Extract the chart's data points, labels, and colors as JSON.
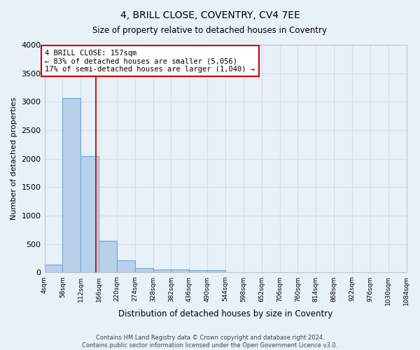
{
  "title": "4, BRILL CLOSE, COVENTRY, CV4 7EE",
  "subtitle": "Size of property relative to detached houses in Coventry",
  "xlabel": "Distribution of detached houses by size in Coventry",
  "ylabel": "Number of detached properties",
  "bar_edges": [
    4,
    58,
    112,
    166,
    220,
    274,
    328,
    382,
    436,
    490,
    544,
    598,
    652,
    706,
    760,
    814,
    868,
    922,
    976,
    1030,
    1084
  ],
  "bar_heights": [
    140,
    3060,
    2050,
    560,
    220,
    75,
    55,
    50,
    45,
    45,
    0,
    0,
    0,
    0,
    0,
    0,
    0,
    0,
    0,
    0
  ],
  "bar_color": "#b8d0ea",
  "bar_edge_color": "#6aaad4",
  "grid_color": "#d0dff0",
  "background_color": "#e8f0f8",
  "vline_x": 157,
  "vline_color": "#cc0000",
  "annotation_text": "4 BRILL CLOSE: 157sqm\n← 83% of detached houses are smaller (5,056)\n17% of semi-detached houses are larger (1,040) →",
  "annotation_box_color": "#ffffff",
  "annotation_box_edge": "#cc0000",
  "ylim": [
    0,
    4000
  ],
  "yticks": [
    0,
    500,
    1000,
    1500,
    2000,
    2500,
    3000,
    3500,
    4000
  ],
  "footer_line1": "Contains HM Land Registry data © Crown copyright and database right 2024.",
  "footer_line2": "Contains public sector information licensed under the Open Government Licence v3.0.",
  "tick_labels": [
    "4sqm",
    "58sqm",
    "112sqm",
    "166sqm",
    "220sqm",
    "274sqm",
    "328sqm",
    "382sqm",
    "436sqm",
    "490sqm",
    "544sqm",
    "598sqm",
    "652sqm",
    "706sqm",
    "760sqm",
    "814sqm",
    "868sqm",
    "922sqm",
    "976sqm",
    "1030sqm",
    "1084sqm"
  ]
}
